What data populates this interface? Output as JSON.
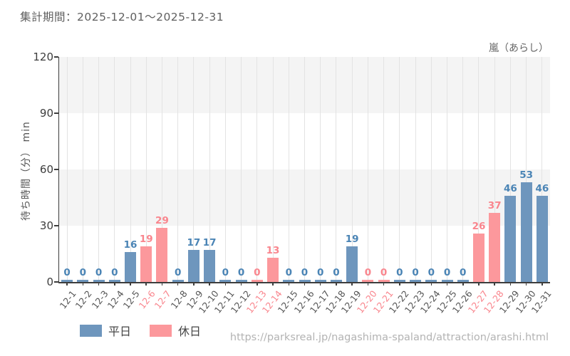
{
  "header": {
    "period_label": "集計期間：2025-12-01～2025-12-31",
    "attraction_name": "嵐（あらし）"
  },
  "chart_data": {
    "type": "bar",
    "title": "集計期間：2025-12-01～2025-12-31",
    "annotation": "嵐（あらし）",
    "xlabel": "",
    "ylabel": "待ち時間（分） min",
    "ylim": [
      0,
      120
    ],
    "yticks": [
      0,
      30,
      60,
      90,
      120
    ],
    "grid": "vertical gridline per day, alternating horizontal bands between y ticks",
    "legend_position": "bottom-left",
    "categories": [
      "12-1",
      "12-2",
      "12-3",
      "12-4",
      "12-5",
      "12-6",
      "12-7",
      "12-8",
      "12-9",
      "12-10",
      "12-11",
      "12-12",
      "12-13",
      "12-14",
      "12-15",
      "12-16",
      "12-17",
      "12-18",
      "12-19",
      "12-20",
      "12-21",
      "12-22",
      "12-23",
      "12-24",
      "12-25",
      "12-26",
      "12-27",
      "12-28",
      "12-29",
      "12-30",
      "12-31"
    ],
    "values": [
      0,
      0,
      0,
      0,
      16,
      19,
      29,
      0,
      17,
      17,
      0,
      0,
      0,
      13,
      0,
      0,
      0,
      0,
      19,
      0,
      0,
      0,
      0,
      0,
      0,
      0,
      26,
      37,
      46,
      53,
      46
    ],
    "day_types": [
      "weekday",
      "weekday",
      "weekday",
      "weekday",
      "weekday",
      "weekend",
      "weekend",
      "weekday",
      "weekday",
      "weekday",
      "weekday",
      "weekday",
      "weekend",
      "weekend",
      "weekday",
      "weekday",
      "weekday",
      "weekday",
      "weekday",
      "weekend",
      "weekend",
      "weekday",
      "weekday",
      "weekday",
      "weekday",
      "weekday",
      "weekend",
      "weekend",
      "weekday",
      "weekday",
      "weekday"
    ],
    "legend": [
      {
        "key": "weekday",
        "label": "平日",
        "color": "#6e96bd"
      },
      {
        "key": "weekend",
        "label": "休日",
        "color": "#fc989c"
      }
    ],
    "colors": {
      "weekday_bar": "#6e96bd",
      "weekday_text": "#4a84b5",
      "weekend_bar": "#fc989c",
      "weekend_text": "#f9858d",
      "axis": "#3d3d3d",
      "gridline": "#e3e3e3",
      "band": "#f4f4f4",
      "tick_text": "#555555"
    }
  },
  "footer": {
    "url": "https://parksreal.jp/nagashima-spaland/attraction/arashi.html"
  }
}
